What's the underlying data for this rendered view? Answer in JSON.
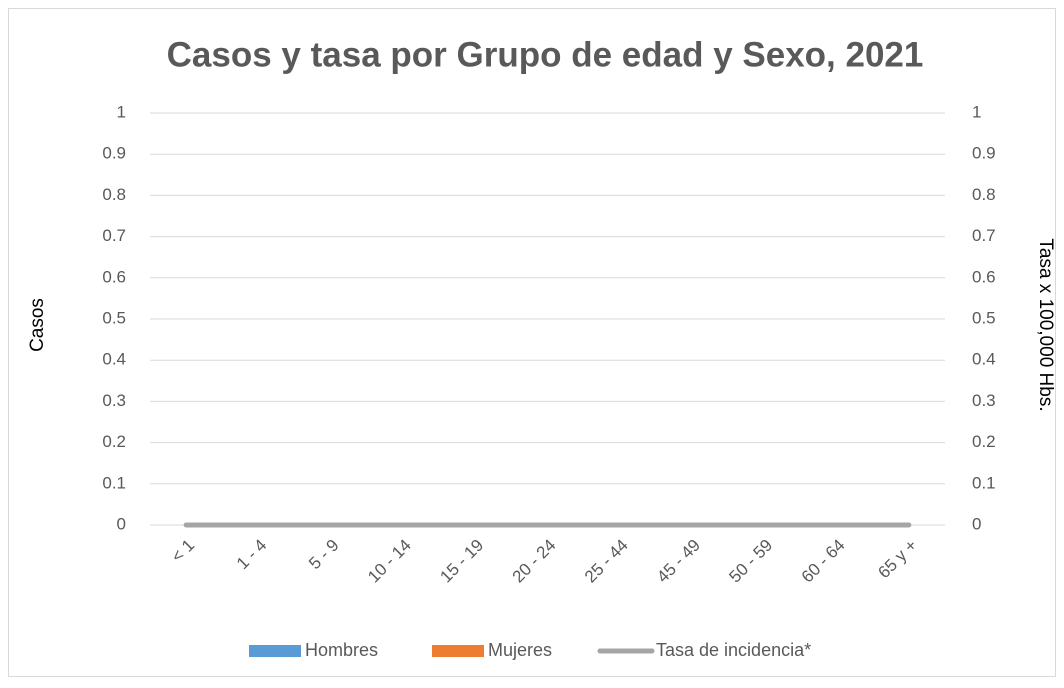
{
  "chart_data": {
    "type": "bar",
    "title": "Casos y tasa por Grupo de edad y Sexo, 2021",
    "y_label": "Casos",
    "y2_label": "Tasa x 100,000 Hbs.",
    "categories": [
      "< 1",
      "1 - 4",
      "5 - 9",
      "10 - 14",
      "15 - 19",
      "20 - 24",
      "25 - 44",
      "45 - 49",
      "50 - 59",
      "60 - 64",
      "65 y +"
    ],
    "series": [
      {
        "name": "Hombres",
        "color": "#5b9bd5",
        "type": "bar",
        "values": [
          0,
          0,
          0,
          0,
          0,
          0,
          0,
          0,
          0,
          0,
          0
        ]
      },
      {
        "name": "Mujeres",
        "color": "#ed7d31",
        "type": "bar",
        "values": [
          0,
          0,
          0,
          0,
          0,
          0,
          0,
          0,
          0,
          0,
          0
        ]
      },
      {
        "name": "Tasa de incidencia*",
        "color": "#a5a5a5",
        "type": "line",
        "axis": "y2",
        "values": [
          0,
          0,
          0,
          0,
          0,
          0,
          0,
          0,
          0,
          0,
          0
        ]
      }
    ],
    "ylim": [
      0,
      1
    ],
    "yticks": [
      0,
      0.1,
      0.2,
      0.3,
      0.4,
      0.5,
      0.6,
      0.7,
      0.8,
      0.9,
      1
    ],
    "y2lim": [
      0,
      1
    ],
    "y2ticks": [
      0,
      0.1,
      0.2,
      0.3,
      0.4,
      0.5,
      0.6,
      0.7,
      0.8,
      0.9,
      1
    ],
    "grid": true,
    "legend": "bottom"
  }
}
